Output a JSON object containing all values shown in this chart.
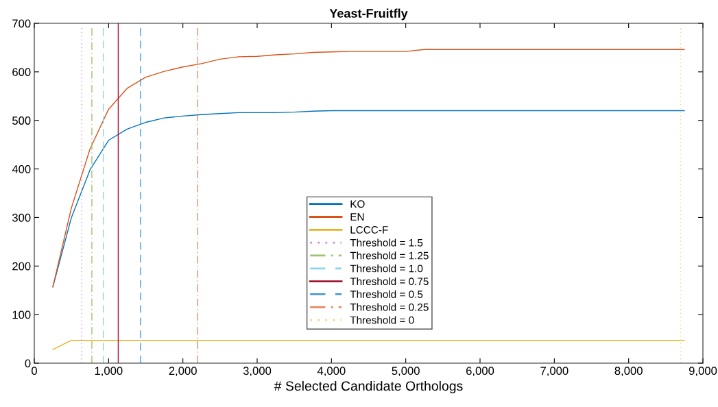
{
  "chart_data": {
    "type": "line",
    "title": "Yeast-Fruitfly",
    "xlabel": "# Selected Candidate Orthologs",
    "x": [
      250,
      500,
      750,
      1000,
      1250,
      1500,
      1750,
      2000,
      2250,
      2500,
      2750,
      3000,
      3250,
      3500,
      3750,
      4000,
      4250,
      4500,
      4750,
      5000,
      5250,
      5500,
      5750,
      6000,
      6250,
      6500,
      6750,
      7000,
      7250,
      7500,
      7750,
      8000,
      8250,
      8500,
      8750
    ],
    "series": [
      {
        "name": "KO",
        "color": "#0072bd",
        "values": [
          157,
          300,
          398,
          459,
          482,
          496,
          505,
          509,
          512,
          514,
          516,
          516,
          516,
          517,
          519,
          520,
          520,
          520,
          520,
          520,
          520,
          520,
          520,
          520,
          520,
          520,
          520,
          520,
          520,
          520,
          520,
          520,
          520,
          520,
          520
        ]
      },
      {
        "name": "EN",
        "color": "#d95319",
        "values": [
          157,
          320,
          441,
          523,
          566,
          589,
          601,
          610,
          617,
          626,
          631,
          632,
          635,
          637,
          640,
          641,
          642,
          642,
          642,
          642,
          646,
          646,
          646,
          646,
          646,
          646,
          646,
          646,
          646,
          646,
          646,
          646,
          646,
          646,
          646
        ]
      },
      {
        "name": "LCCC-F",
        "color": "#edb120",
        "values": [
          28,
          47,
          47,
          47,
          47,
          47,
          47,
          47,
          47,
          47,
          47,
          47,
          47,
          47,
          47,
          47,
          47,
          47,
          47,
          47,
          47,
          47,
          47,
          47,
          47,
          47,
          47,
          47,
          47,
          47,
          47,
          47,
          47,
          47,
          47
        ]
      },
      {
        "name": "Threshold = 1.5",
        "color": "#c58fd8",
        "line_style": "dotted",
        "x": [
          640,
          640
        ],
        "values": [
          0,
          690
        ]
      },
      {
        "name": "Threshold = 1.25",
        "color": "#9fc36f",
        "line_style": "dashdot",
        "x": [
          775,
          775
        ],
        "values": [
          0,
          690
        ]
      },
      {
        "name": "Threshold = 1.0",
        "color": "#8fd3f1",
        "line_style": "dashed",
        "x": [
          930,
          930
        ],
        "values": [
          0,
          690
        ]
      },
      {
        "name": "Threshold = 0.75",
        "color": "#a2142f",
        "line_style": "solid",
        "x": [
          1130,
          1130
        ],
        "values": [
          0,
          700
        ]
      },
      {
        "name": "Threshold = 0.5",
        "color": "#4d9bd4",
        "line_style": "dashed",
        "x": [
          1430,
          1430
        ],
        "values": [
          0,
          690
        ]
      },
      {
        "name": "Threshold = 0.25",
        "color": "#e88a63",
        "line_style": "dashdot",
        "x": [
          2200,
          2200
        ],
        "values": [
          0,
          690
        ]
      },
      {
        "name": "Threshold = 0",
        "color": "#f5d27c",
        "line_style": "dotted",
        "x": [
          8700,
          8700
        ],
        "values": [
          0,
          690
        ]
      }
    ],
    "xlim": [
      0,
      9000
    ],
    "xticks": [
      0,
      {
        "value": 1000,
        "label": "1,000"
      },
      {
        "value": 2000,
        "label": "2,000"
      },
      {
        "value": 3000,
        "label": "3,000"
      },
      {
        "value": 4000,
        "label": "4,000"
      },
      {
        "value": 5000,
        "label": "5,000"
      },
      {
        "value": 6000,
        "label": "6,000"
      },
      {
        "value": 7000,
        "label": "7,000"
      },
      {
        "value": 8000,
        "label": "8,000"
      },
      {
        "value": 9000,
        "label": "9,000"
      }
    ],
    "ylim": [
      0,
      700
    ],
    "yticks": [
      0,
      100,
      200,
      300,
      400,
      500,
      600,
      700
    ],
    "grid": false,
    "legend": "bottom"
  }
}
